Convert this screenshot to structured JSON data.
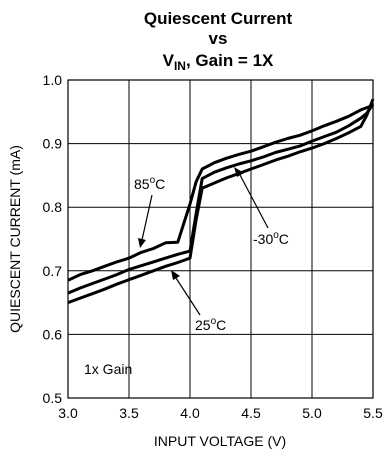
{
  "chart_data": {
    "type": "line",
    "title_line1": "Quiescent Current",
    "title_line2": "vs",
    "title_line3_main": "V",
    "title_line3_sub": "IN",
    "title_line3_rest": ", Gain = 1X",
    "xlabel": "INPUT VOLTAGE (V)",
    "ylabel": "QUIESCENT CURRENT (mA)",
    "xlim": [
      3.0,
      5.5
    ],
    "ylim": [
      0.5,
      1.0
    ],
    "x_ticks": [
      3.0,
      3.5,
      4.0,
      4.5,
      5.0,
      5.5
    ],
    "x_tick_labels": [
      "3.0",
      "3.5",
      "4.0",
      "4.5",
      "5.0",
      "5.5"
    ],
    "y_ticks": [
      0.5,
      0.6,
      0.7,
      0.8,
      0.9,
      1.0
    ],
    "y_tick_labels": [
      "0.5",
      "0.6",
      "0.7",
      "0.8",
      "0.9",
      "1.0"
    ],
    "grid": true,
    "annotation_gain": "1x Gain",
    "series": [
      {
        "name": "85°C",
        "label_main": "85",
        "label_sup": "o",
        "label_rest": "C",
        "x": [
          3.0,
          3.1,
          3.2,
          3.3,
          3.4,
          3.5,
          3.6,
          3.7,
          3.8,
          3.9,
          3.95,
          4.0,
          4.05,
          4.1,
          4.2,
          4.3,
          4.4,
          4.5,
          4.6,
          4.7,
          4.8,
          4.9,
          5.0,
          5.1,
          5.2,
          5.3,
          5.4,
          5.5
        ],
        "values": [
          0.685,
          0.694,
          0.7,
          0.707,
          0.714,
          0.72,
          0.729,
          0.735,
          0.744,
          0.745,
          0.775,
          0.805,
          0.84,
          0.86,
          0.87,
          0.877,
          0.883,
          0.888,
          0.895,
          0.902,
          0.908,
          0.913,
          0.92,
          0.928,
          0.935,
          0.943,
          0.953,
          0.96
        ]
      },
      {
        "name": "25°C",
        "label_main": "25",
        "label_sup": "o",
        "label_rest": "C",
        "x": [
          3.0,
          3.1,
          3.2,
          3.3,
          3.4,
          3.5,
          3.6,
          3.7,
          3.8,
          3.9,
          4.0,
          4.05,
          4.1,
          4.2,
          4.3,
          4.4,
          4.5,
          4.6,
          4.7,
          4.8,
          4.9,
          5.0,
          5.1,
          5.2,
          5.3,
          5.4,
          5.45,
          5.5
        ],
        "values": [
          0.665,
          0.673,
          0.68,
          0.687,
          0.694,
          0.702,
          0.708,
          0.714,
          0.72,
          0.726,
          0.731,
          0.79,
          0.845,
          0.855,
          0.862,
          0.868,
          0.873,
          0.879,
          0.886,
          0.891,
          0.896,
          0.904,
          0.911,
          0.918,
          0.928,
          0.94,
          0.948,
          0.962
        ]
      },
      {
        "name": "-30°C",
        "label_main": "-30",
        "label_sup": "o",
        "label_rest": "C",
        "x": [
          3.0,
          3.1,
          3.2,
          3.3,
          3.4,
          3.5,
          3.6,
          3.7,
          3.8,
          3.9,
          4.0,
          4.05,
          4.1,
          4.2,
          4.3,
          4.4,
          4.5,
          4.6,
          4.7,
          4.8,
          4.9,
          5.0,
          5.1,
          5.2,
          5.3,
          5.4,
          5.45,
          5.5
        ],
        "values": [
          0.65,
          0.657,
          0.664,
          0.671,
          0.679,
          0.686,
          0.693,
          0.7,
          0.707,
          0.713,
          0.72,
          0.78,
          0.83,
          0.838,
          0.846,
          0.853,
          0.86,
          0.867,
          0.874,
          0.88,
          0.887,
          0.893,
          0.9,
          0.908,
          0.917,
          0.927,
          0.945,
          0.97
        ]
      }
    ]
  }
}
